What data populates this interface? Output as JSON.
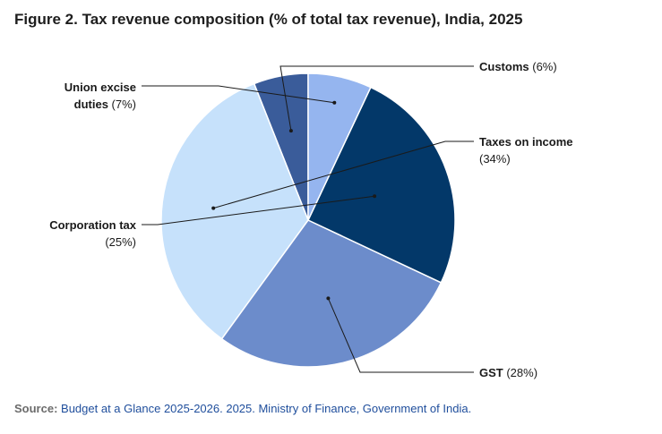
{
  "chart_data": {
    "type": "pie",
    "title": "Figure 2. Tax revenue composition (% of total tax revenue), India, 2025",
    "categories": [
      "Customs",
      "Taxes on income",
      "GST",
      "Corporation tax",
      "Union excise duties"
    ],
    "values": [
      6,
      34,
      28,
      25,
      7
    ],
    "unit": "%",
    "labels": [
      {
        "lines": [
          {
            "name": "Customs",
            "pct": "(6%)"
          }
        ]
      },
      {
        "lines": [
          {
            "name": "Taxes on income",
            "pct": ""
          },
          {
            "name": "",
            "pct": "(34%)"
          }
        ]
      },
      {
        "lines": [
          {
            "name": "GST",
            "pct": "(28%)"
          }
        ]
      },
      {
        "lines": [
          {
            "name": "Corporation tax",
            "pct": ""
          },
          {
            "name": "",
            "pct": "(25%)"
          }
        ]
      },
      {
        "lines": [
          {
            "name": "Union excise",
            "pct": ""
          },
          {
            "name": "duties",
            "pct": "(7%)"
          }
        ]
      }
    ],
    "colors": [
      "#3a5c9a",
      "#c6e1fb",
      "#6c8ccb",
      "#033869",
      "#95b5ef"
    ]
  },
  "source": {
    "label": "Source:",
    "text": "Budget at a Glance 2025-2026. 2025. Ministry of Finance, Government of India."
  }
}
